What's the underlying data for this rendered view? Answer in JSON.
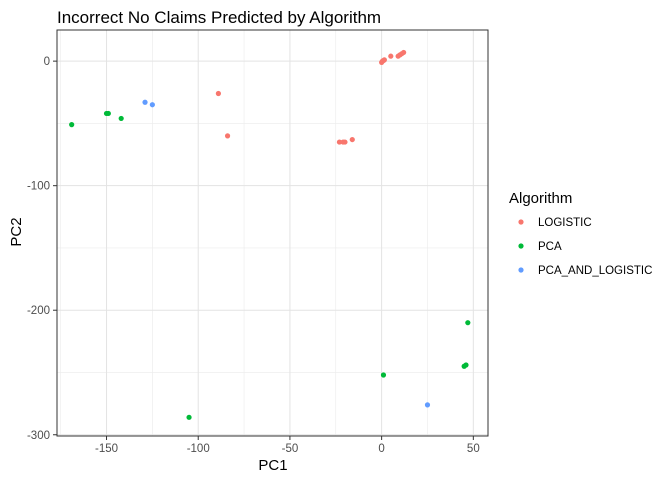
{
  "chart_data": {
    "type": "scatter",
    "title": "Incorrect No Claims Predicted by Algorithm",
    "xlabel": "PC1",
    "ylabel": "PC2",
    "xlim": [
      -177,
      58
    ],
    "ylim": [
      -301,
      25
    ],
    "x_ticks": [
      -150,
      -100,
      -50,
      0,
      50
    ],
    "y_ticks": [
      0,
      -100,
      -200,
      -300
    ],
    "grid": true,
    "legend": {
      "title": "Algorithm",
      "placement": "right"
    },
    "series": [
      {
        "name": "LOGISTIC",
        "color": "#F8766D",
        "points": [
          {
            "x": -89,
            "y": -26
          },
          {
            "x": -84,
            "y": -60
          },
          {
            "x": -23,
            "y": -65
          },
          {
            "x": -21,
            "y": -65
          },
          {
            "x": -20,
            "y": -65
          },
          {
            "x": -16,
            "y": -63
          },
          {
            "x": 0,
            "y": -1
          },
          {
            "x": 0.5,
            "y": 0
          },
          {
            "x": 1,
            "y": 0.5
          },
          {
            "x": 1.5,
            "y": 1
          },
          {
            "x": 5,
            "y": 4
          },
          {
            "x": 9,
            "y": 4
          },
          {
            "x": 10,
            "y": 5
          },
          {
            "x": 11,
            "y": 6
          },
          {
            "x": 12,
            "y": 7
          }
        ]
      },
      {
        "name": "PCA",
        "color": "#00BA38",
        "points": [
          {
            "x": -169,
            "y": -51
          },
          {
            "x": -150,
            "y": -42
          },
          {
            "x": -149,
            "y": -42
          },
          {
            "x": -142,
            "y": -46
          },
          {
            "x": -105,
            "y": -286
          },
          {
            "x": 1,
            "y": -252
          },
          {
            "x": 45,
            "y": -245
          },
          {
            "x": 46,
            "y": -244
          },
          {
            "x": 47,
            "y": -210
          }
        ]
      },
      {
        "name": "PCA_AND_LOGISTIC",
        "color": "#619CFF",
        "points": [
          {
            "x": -129,
            "y": -33
          },
          {
            "x": -125,
            "y": -35
          },
          {
            "x": 25,
            "y": -276
          }
        ]
      }
    ]
  }
}
